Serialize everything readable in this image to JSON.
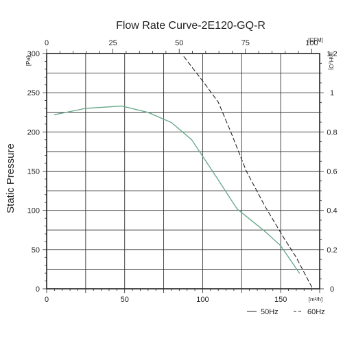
{
  "chart_data": {
    "type": "line",
    "title": "Flow Rate Curve-2E120-GQ-R",
    "ylabel": "Static Pressure",
    "x_bottom": {
      "unit": "[m³/h]",
      "range": [
        0,
        175
      ],
      "ticks": [
        0,
        50,
        100,
        150
      ]
    },
    "x_top": {
      "unit": "[CFM]",
      "range": [
        0,
        103
      ],
      "ticks": [
        0,
        25,
        50,
        75,
        100
      ]
    },
    "y_left": {
      "unit": "[Pa]",
      "range": [
        0,
        300
      ],
      "ticks": [
        0,
        50,
        100,
        150,
        200,
        250,
        300
      ]
    },
    "y_right": {
      "unit": "[inH₂O]",
      "range": [
        0,
        1.2
      ],
      "ticks": [
        "0",
        "0.2",
        "0.4",
        "0.6",
        "0.8",
        "1",
        "1.2"
      ]
    },
    "grid": true,
    "legend_placement": "bottom-right",
    "series": [
      {
        "name": "50Hz",
        "style": "solid",
        "color": "#6aaa8c",
        "x": [
          5,
          25,
          48,
          65,
          80,
          93,
          108,
          122,
          140,
          150,
          162
        ],
        "y": [
          222,
          230,
          233,
          225,
          212,
          190,
          145,
          102,
          73,
          55,
          20
        ]
      },
      {
        "name": "60Hz",
        "style": "dashed",
        "color": "#222222",
        "x": [
          88,
          100,
          110,
          118,
          128,
          140,
          152,
          160,
          170
        ],
        "y": [
          296,
          265,
          238,
          200,
          150,
          105,
          65,
          40,
          2
        ]
      }
    ]
  }
}
